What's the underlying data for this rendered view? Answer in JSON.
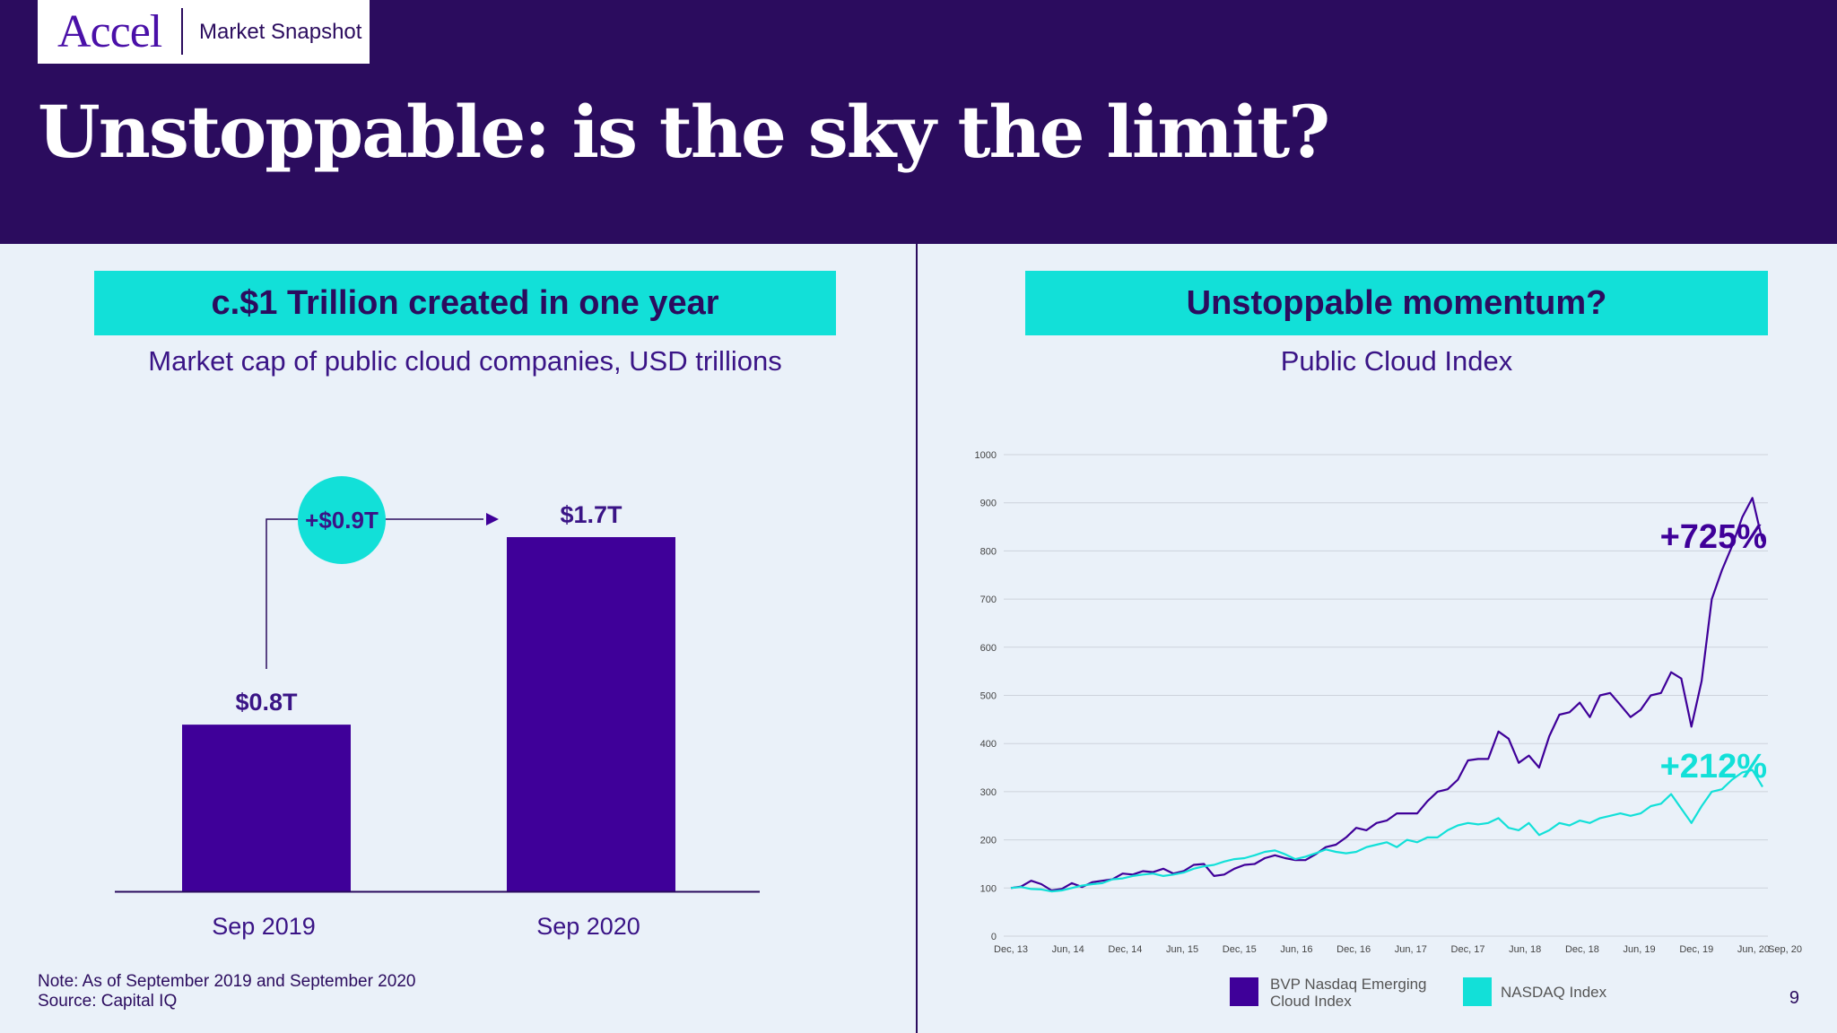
{
  "header": {
    "logo": "Accel",
    "section": "Market Snapshot",
    "title": "Unstoppable: is the sky the limit?"
  },
  "left_panel": {
    "heading": "c.$1 Trillion created in one year",
    "subtitle": "Market cap of public cloud companies, USD trillions",
    "growth_label": "+$0.9T"
  },
  "right_panel": {
    "heading": "Unstoppable momentum?",
    "subtitle": "Public Cloud Index",
    "annotation_bvp": "+725%",
    "annotation_nasdaq": "+212%",
    "legend": {
      "bvp_line1": "BVP Nasdaq Emerging",
      "bvp_line2": "Cloud Index",
      "nasdaq": "NASDAQ Index"
    }
  },
  "footer": {
    "note": "Note: As of September 2019 and September 2020",
    "source": "Source: Capital IQ",
    "page": "9"
  },
  "colors": {
    "navy": "#2b0c5e",
    "purple": "#3f0099",
    "cyan": "#12e0d8"
  },
  "chart_data": [
    {
      "type": "bar",
      "categories": [
        "Sep 2019",
        "Sep 2020"
      ],
      "values": [
        0.8,
        1.7
      ],
      "labels": [
        "$0.8T",
        "$1.7T"
      ],
      "subtitle": "Market cap of public cloud companies, USD trillions"
    },
    {
      "type": "line",
      "subtitle": "Public Cloud Index",
      "ylim": [
        0,
        1000
      ],
      "yticks": [
        0,
        100,
        200,
        300,
        400,
        500,
        600,
        700,
        800,
        900,
        1000
      ],
      "xticks": [
        "Dec, 13",
        "Jun, 14",
        "Dec, 14",
        "Jun, 15",
        "Dec, 15",
        "Jun, 16",
        "Dec, 16",
        "Jun, 17",
        "Dec, 17",
        "Jun, 18",
        "Dec, 18",
        "Jun, 19",
        "Dec, 19",
        "Jun, 20",
        "Sep, 20"
      ],
      "grid": true,
      "legend_position": "bottom",
      "series": [
        {
          "name": "BVP Nasdaq Emerging Cloud Index",
          "color": "#3f0099",
          "values": [
            100,
            103,
            115,
            108,
            95,
            98,
            110,
            102,
            112,
            115,
            118,
            130,
            128,
            135,
            133,
            140,
            130,
            135,
            148,
            150,
            125,
            128,
            140,
            148,
            150,
            162,
            168,
            162,
            158,
            158,
            170,
            185,
            190,
            205,
            225,
            220,
            235,
            240,
            255,
            255,
            255,
            280,
            300,
            305,
            325,
            365,
            368,
            368,
            425,
            410,
            360,
            375,
            350,
            415,
            460,
            465,
            485,
            455,
            500,
            505,
            480,
            455,
            470,
            500,
            505,
            548,
            535,
            435,
            530,
            700,
            760,
            810,
            870,
            910,
            820
          ]
        },
        {
          "name": "NASDAQ Index",
          "color": "#12e0d8",
          "values": [
            100,
            102,
            98,
            97,
            93,
            95,
            100,
            105,
            108,
            110,
            118,
            120,
            125,
            128,
            130,
            125,
            128,
            132,
            140,
            145,
            148,
            155,
            160,
            162,
            168,
            175,
            178,
            170,
            160,
            165,
            172,
            180,
            175,
            172,
            175,
            185,
            190,
            195,
            185,
            200,
            195,
            205,
            205,
            220,
            230,
            235,
            232,
            235,
            245,
            225,
            220,
            235,
            210,
            220,
            235,
            230,
            240,
            235,
            245,
            250,
            255,
            250,
            255,
            270,
            275,
            295,
            265,
            235,
            270,
            300,
            305,
            325,
            340,
            345,
            310
          ]
        }
      ]
    }
  ]
}
